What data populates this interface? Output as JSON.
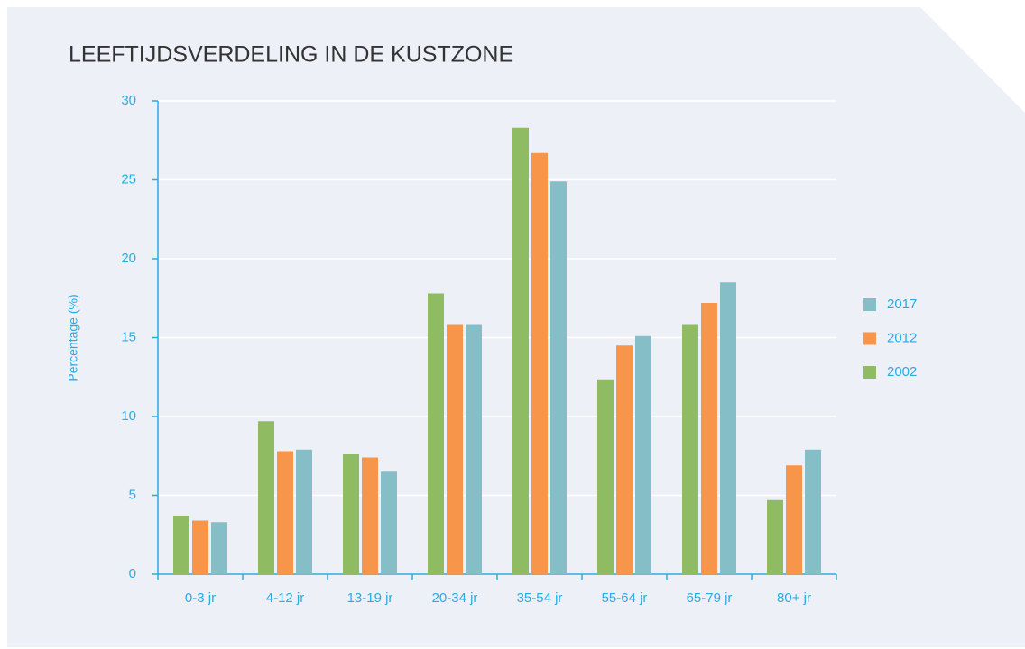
{
  "chart_data": {
    "type": "bar",
    "title": "LEEFTIJDSVERDELING IN DE KUSTZONE",
    "ylabel": "Percentage (%)",
    "categories": [
      "0-3 jr",
      "4-12 jr",
      "13-19 jr",
      "20-34 jr",
      "35-54 jr",
      "55-64 jr",
      "65-79 jr",
      "80+ jr"
    ],
    "series": [
      {
        "name": "2002",
        "color": "#8fbb63",
        "values": [
          3.7,
          9.7,
          7.6,
          17.8,
          28.3,
          12.3,
          15.8,
          4.7
        ]
      },
      {
        "name": "2012",
        "color": "#f7964b",
        "values": [
          3.4,
          7.8,
          7.4,
          15.8,
          26.7,
          14.5,
          17.2,
          6.9
        ]
      },
      {
        "name": "2017",
        "color": "#85bec6",
        "values": [
          3.3,
          7.9,
          6.5,
          15.8,
          24.9,
          15.1,
          18.5,
          7.9
        ]
      }
    ],
    "ylim": [
      0,
      30
    ],
    "yticks": [
      0,
      5,
      10,
      15,
      20,
      25,
      30
    ],
    "grid": true,
    "legend": "right"
  }
}
